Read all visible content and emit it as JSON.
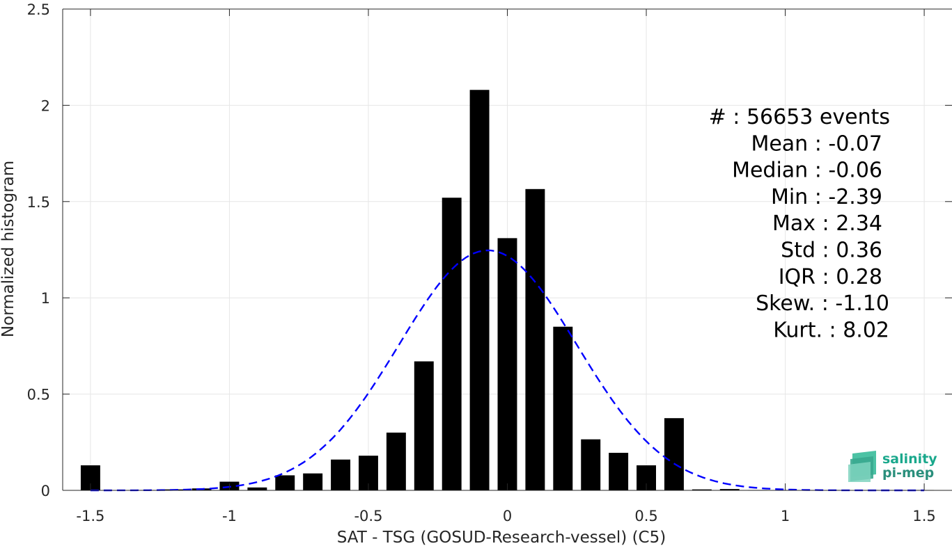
{
  "chart_data": {
    "type": "bar",
    "xlabel": "SAT - TSG (GOSUD-Research-vessel) (C5)",
    "ylabel": "Normalized histogram",
    "xlim": [
      -1.6,
      1.6
    ],
    "ylim": [
      0,
      2.5
    ],
    "grid": true,
    "x_ticks": [
      -1.5,
      -1,
      -0.5,
      0,
      0.5,
      1,
      1.5
    ],
    "x_tick_labels": [
      "-1.5",
      "-1",
      "-0.5",
      "0",
      "0.5",
      "1",
      "1.5"
    ],
    "y_ticks": [
      0,
      0.5,
      1,
      1.5,
      2,
      2.5
    ],
    "y_tick_labels": [
      "0",
      "0.5",
      "1",
      "1.5",
      "2",
      "2.5"
    ],
    "bar_width": 0.07,
    "bar_color": "#000000",
    "bars": [
      {
        "x": -1.5,
        "y": 0.13
      },
      {
        "x": -1.4,
        "y": 0.0
      },
      {
        "x": -1.3,
        "y": 0.002
      },
      {
        "x": -1.2,
        "y": 0.005
      },
      {
        "x": -1.1,
        "y": 0.01
      },
      {
        "x": -1.0,
        "y": 0.045
      },
      {
        "x": -0.9,
        "y": 0.015
      },
      {
        "x": -0.8,
        "y": 0.078
      },
      {
        "x": -0.7,
        "y": 0.088
      },
      {
        "x": -0.6,
        "y": 0.16
      },
      {
        "x": -0.5,
        "y": 0.18
      },
      {
        "x": -0.4,
        "y": 0.3
      },
      {
        "x": -0.3,
        "y": 0.67
      },
      {
        "x": -0.2,
        "y": 1.52
      },
      {
        "x": -0.1,
        "y": 2.08
      },
      {
        "x": 0.0,
        "y": 1.31
      },
      {
        "x": 0.1,
        "y": 1.565
      },
      {
        "x": 0.2,
        "y": 0.85
      },
      {
        "x": 0.3,
        "y": 0.265
      },
      {
        "x": 0.4,
        "y": 0.195
      },
      {
        "x": 0.5,
        "y": 0.13
      },
      {
        "x": 0.6,
        "y": 0.375
      },
      {
        "x": 0.7,
        "y": 0.005
      },
      {
        "x": 0.8,
        "y": 0.007
      },
      {
        "x": 0.9,
        "y": 0.002
      },
      {
        "x": 1.0,
        "y": 0.002
      },
      {
        "x": 1.1,
        "y": 0.002
      },
      {
        "x": 1.2,
        "y": 0.002
      },
      {
        "x": 1.3,
        "y": 0.002
      },
      {
        "x": 1.4,
        "y": 0.002
      },
      {
        "x": 1.5,
        "y": 0.002
      }
    ],
    "fit_curve": {
      "style": "dashed",
      "color": "#0000ff",
      "mean": -0.07,
      "std": 0.32,
      "x_range": [
        -1.5,
        1.5
      ]
    },
    "stats": [
      {
        "label": "#  : 56653 events"
      },
      {
        "label": "Mean : -0.07"
      },
      {
        "label": "Median : -0.06"
      },
      {
        "label": "Min : -2.39"
      },
      {
        "label": "Max : 2.34"
      },
      {
        "label": "Std : 0.36"
      },
      {
        "label": "IQR : 0.28"
      },
      {
        "label": "Skew. : -1.10"
      },
      {
        "label": "Kurt. : 8.02"
      }
    ]
  },
  "logo": {
    "line1": "salinity",
    "line2": "pi-mep",
    "color1": "#1aa88c",
    "color2": "#2a8f7c"
  }
}
